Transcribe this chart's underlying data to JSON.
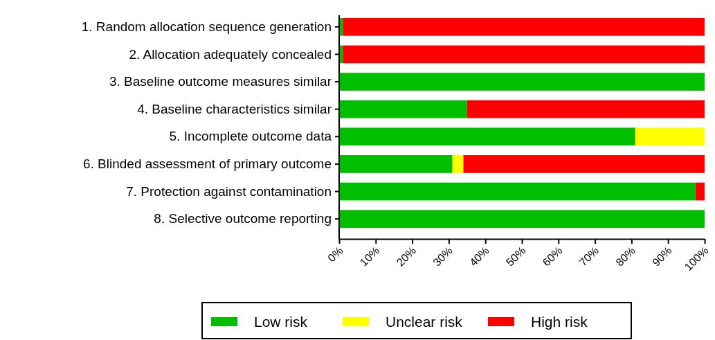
{
  "chart_data": {
    "type": "bar",
    "orientation": "horizontal",
    "stacked": true,
    "categories": [
      "1. Random allocation sequence generation",
      "2. Allocation adequately concealed",
      "3. Baseline outcome measures similar",
      "4. Baseline characteristics similar",
      "5. Incomplete outcome data",
      "6. Blinded assessment of primary outcome",
      "7. Protection against contamination",
      "8. Selective outcome reporting"
    ],
    "series": [
      {
        "name": "Low risk",
        "color": "#00bf00",
        "values": [
          1,
          1,
          100,
          35,
          81,
          31,
          97.5,
          100
        ]
      },
      {
        "name": "Unclear risk",
        "color": "#ffff00",
        "values": [
          0,
          0,
          0,
          0,
          19,
          3,
          0,
          0
        ]
      },
      {
        "name": "High risk",
        "color": "#ff0000",
        "values": [
          99,
          99,
          0,
          65,
          0,
          66,
          2.5,
          0
        ]
      }
    ],
    "xlim": [
      0,
      100
    ],
    "xticks": [
      {
        "value": 0,
        "label": "0%"
      },
      {
        "value": 10,
        "label": "10%"
      },
      {
        "value": 20,
        "label": "20%"
      },
      {
        "value": 30,
        "label": "30%"
      },
      {
        "value": 40,
        "label": "40%"
      },
      {
        "value": 50,
        "label": "50%"
      },
      {
        "value": 60,
        "label": "60%"
      },
      {
        "value": 70,
        "label": "70%"
      },
      {
        "value": 80,
        "label": "80%"
      },
      {
        "value": 90,
        "label": "90%"
      },
      {
        "value": 100,
        "label": "100%"
      }
    ],
    "legend": "bottom",
    "grid": false
  }
}
